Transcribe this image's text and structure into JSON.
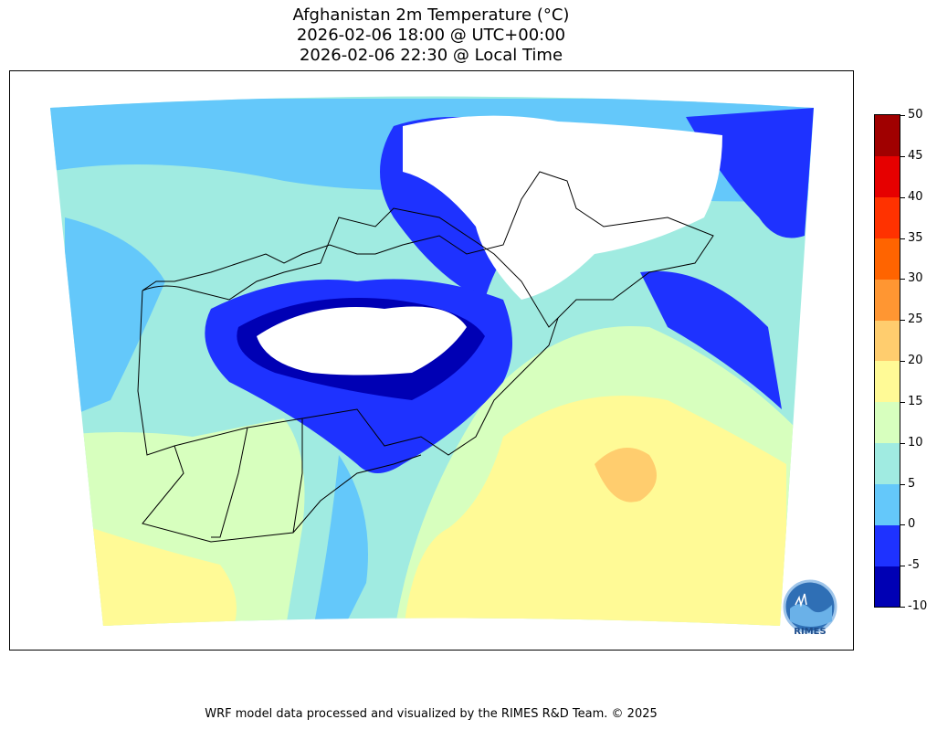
{
  "title": {
    "line1": "Afghanistan 2m Temperature (°C)",
    "line2": "2026-02-06 18:00 @ UTC+00:00",
    "line3": "2026-02-06 22:30 @ Local Time"
  },
  "colorbar": {
    "levels": [
      "-10",
      "-5",
      "0",
      "5",
      "10",
      "15",
      "20",
      "25",
      "30",
      "35",
      "40",
      "45",
      "50"
    ],
    "colors": [
      "#0000b4",
      "#1e32ff",
      "#64c8fa",
      "#a0ebe1",
      "#d7ffbe",
      "#fffa96",
      "#ffcd6e",
      "#ff9632",
      "#ff6400",
      "#ff3200",
      "#e60000",
      "#a00000"
    ]
  },
  "logo": {
    "text": "RIMES",
    "icon": "rimes-logo-icon"
  },
  "footer": "WRF model data processed and visualized by the RIMES R&D Team. © 2025"
}
